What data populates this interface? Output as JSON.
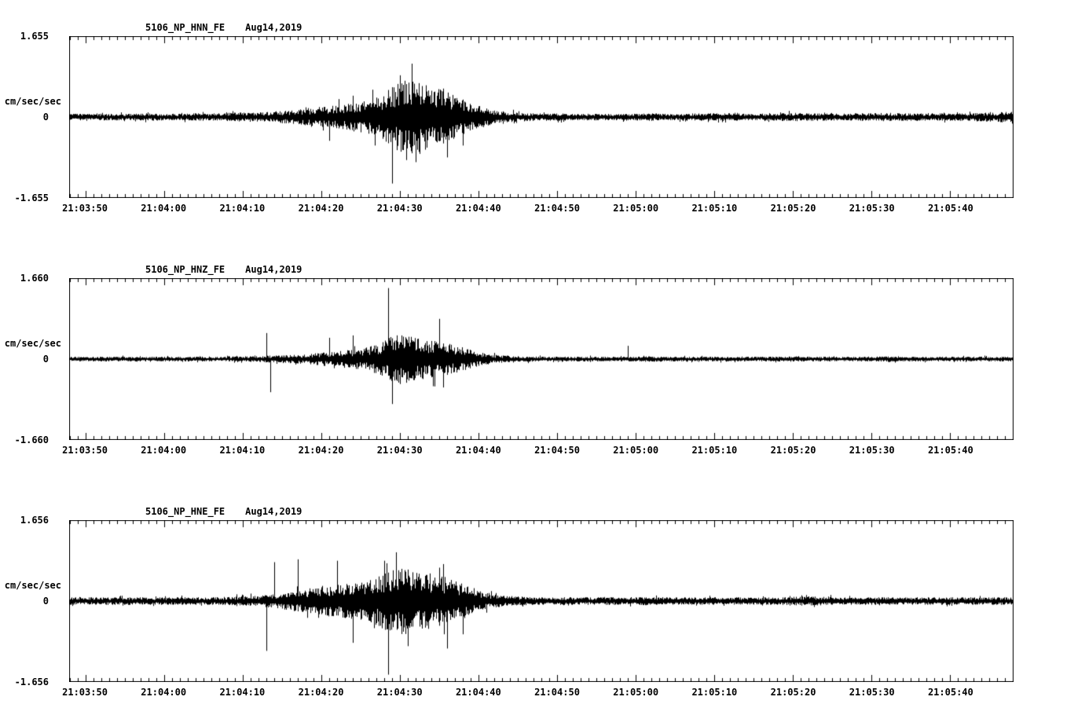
{
  "figure": {
    "background": "#ffffff",
    "trace_color": "#000000"
  },
  "chart_data": [
    {
      "type": "line",
      "subtype": "seismogram",
      "title": "5106_NP_HNN_FE",
      "date_label": "Aug14,2019",
      "ylabel": "cm/sec/sec",
      "ylim": [
        -1.655,
        1.655
      ],
      "ytick_labels": [
        "1.655",
        "0",
        "-1.655"
      ],
      "color": "#000000",
      "x_range_sec": [
        0,
        120
      ],
      "x_major_tick_interval_sec": 10,
      "x_minor_tick_interval_sec": 1,
      "xticks": [
        {
          "sec": 2,
          "label": "21:03:50"
        },
        {
          "sec": 12,
          "label": "21:04:00"
        },
        {
          "sec": 22,
          "label": "21:04:10"
        },
        {
          "sec": 32,
          "label": "21:04:20"
        },
        {
          "sec": 42,
          "label": "21:04:30"
        },
        {
          "sec": 52,
          "label": "21:04:40"
        },
        {
          "sec": 62,
          "label": "21:04:50"
        },
        {
          "sec": 72,
          "label": "21:05:00"
        },
        {
          "sec": 82,
          "label": "21:05:10"
        },
        {
          "sec": 92,
          "label": "21:05:20"
        },
        {
          "sec": 102,
          "label": "21:05:30"
        },
        {
          "sec": 112,
          "label": "21:05:40"
        }
      ],
      "envelope_dt_sec": 2,
      "envelope": [
        0.07,
        0.07,
        0.07,
        0.07,
        0.07,
        0.08,
        0.07,
        0.07,
        0.08,
        0.08,
        0.09,
        0.1,
        0.1,
        0.12,
        0.14,
        0.17,
        0.22,
        0.25,
        0.3,
        0.35,
        0.5,
        0.75,
        0.83,
        0.65,
        0.55,
        0.4,
        0.25,
        0.15,
        0.11,
        0.09,
        0.08,
        0.08,
        0.07,
        0.07,
        0.07,
        0.07,
        0.07,
        0.08,
        0.07,
        0.07,
        0.08,
        0.08,
        0.08,
        0.07,
        0.07,
        0.08,
        0.09,
        0.08,
        0.08,
        0.07,
        0.08,
        0.08,
        0.09,
        0.08,
        0.08,
        0.07,
        0.08,
        0.08,
        0.09,
        0.1,
        0.14
      ],
      "spikes": [
        [
          33,
          -0.5
        ],
        [
          36,
          0.45
        ],
        [
          41,
          -1.4
        ],
        [
          42,
          0.88
        ],
        [
          44,
          -0.95
        ],
        [
          47.5,
          0.6
        ],
        [
          48,
          -0.85
        ],
        [
          50,
          -0.6
        ]
      ]
    },
    {
      "type": "line",
      "subtype": "seismogram",
      "title": "5106_NP_HNZ_FE",
      "date_label": "Aug14,2019",
      "ylabel": "cm/sec/sec",
      "ylim": [
        -1.66,
        1.66
      ],
      "ytick_labels": [
        "1.660",
        "0",
        "-1.660"
      ],
      "color": "#000000",
      "x_range_sec": [
        0,
        120
      ],
      "x_major_tick_interval_sec": 10,
      "x_minor_tick_interval_sec": 1,
      "xticks": [
        {
          "sec": 2,
          "label": "21:03:50"
        },
        {
          "sec": 12,
          "label": "21:04:00"
        },
        {
          "sec": 22,
          "label": "21:04:10"
        },
        {
          "sec": 32,
          "label": "21:04:20"
        },
        {
          "sec": 42,
          "label": "21:04:30"
        },
        {
          "sec": 52,
          "label": "21:04:40"
        },
        {
          "sec": 62,
          "label": "21:04:50"
        },
        {
          "sec": 72,
          "label": "21:05:00"
        },
        {
          "sec": 82,
          "label": "21:05:10"
        },
        {
          "sec": 92,
          "label": "21:05:20"
        },
        {
          "sec": 102,
          "label": "21:05:30"
        },
        {
          "sec": 112,
          "label": "21:05:40"
        }
      ],
      "envelope_dt_sec": 2,
      "envelope": [
        0.05,
        0.05,
        0.05,
        0.05,
        0.05,
        0.05,
        0.05,
        0.05,
        0.05,
        0.05,
        0.05,
        0.06,
        0.06,
        0.08,
        0.09,
        0.1,
        0.14,
        0.17,
        0.2,
        0.25,
        0.4,
        0.55,
        0.45,
        0.4,
        0.35,
        0.25,
        0.15,
        0.09,
        0.07,
        0.06,
        0.05,
        0.05,
        0.05,
        0.05,
        0.05,
        0.05,
        0.05,
        0.06,
        0.05,
        0.05,
        0.05,
        0.05,
        0.05,
        0.05,
        0.05,
        0.05,
        0.06,
        0.05,
        0.05,
        0.05,
        0.05,
        0.05,
        0.06,
        0.05,
        0.05,
        0.05,
        0.05,
        0.05,
        0.05,
        0.05,
        0.05
      ],
      "spikes": [
        [
          25,
          0.55
        ],
        [
          25.5,
          -0.7
        ],
        [
          33,
          0.45
        ],
        [
          36,
          0.5
        ],
        [
          40.5,
          1.5
        ],
        [
          41,
          -0.95
        ],
        [
          47,
          0.85
        ],
        [
          47.5,
          -0.6
        ],
        [
          71,
          0.28
        ]
      ]
    },
    {
      "type": "line",
      "subtype": "seismogram",
      "title": "5106_NP_HNE_FE",
      "date_label": "Aug14,2019",
      "ylabel": "cm/sec/sec",
      "ylim": [
        -1.656,
        1.656
      ],
      "ytick_labels": [
        "1.656",
        "0",
        "-1.656"
      ],
      "color": "#000000",
      "x_range_sec": [
        0,
        120
      ],
      "x_major_tick_interval_sec": 10,
      "x_minor_tick_interval_sec": 1,
      "xticks": [
        {
          "sec": 2,
          "label": "21:03:50"
        },
        {
          "sec": 12,
          "label": "21:04:00"
        },
        {
          "sec": 22,
          "label": "21:04:10"
        },
        {
          "sec": 32,
          "label": "21:04:20"
        },
        {
          "sec": 42,
          "label": "21:04:30"
        },
        {
          "sec": 52,
          "label": "21:04:40"
        },
        {
          "sec": 62,
          "label": "21:04:50"
        },
        {
          "sec": 72,
          "label": "21:05:00"
        },
        {
          "sec": 82,
          "label": "21:05:10"
        },
        {
          "sec": 92,
          "label": "21:05:20"
        },
        {
          "sec": 102,
          "label": "21:05:30"
        },
        {
          "sec": 112,
          "label": "21:05:40"
        }
      ],
      "envelope_dt_sec": 2,
      "envelope": [
        0.08,
        0.08,
        0.08,
        0.08,
        0.08,
        0.08,
        0.08,
        0.08,
        0.08,
        0.08,
        0.09,
        0.1,
        0.11,
        0.15,
        0.2,
        0.25,
        0.32,
        0.35,
        0.38,
        0.42,
        0.6,
        0.72,
        0.68,
        0.58,
        0.5,
        0.38,
        0.24,
        0.14,
        0.11,
        0.09,
        0.08,
        0.08,
        0.08,
        0.08,
        0.08,
        0.08,
        0.08,
        0.09,
        0.08,
        0.08,
        0.08,
        0.08,
        0.08,
        0.08,
        0.08,
        0.08,
        0.09,
        0.1,
        0.09,
        0.08,
        0.08,
        0.08,
        0.08,
        0.08,
        0.08,
        0.08,
        0.08,
        0.08,
        0.08,
        0.08,
        0.08
      ],
      "spikes": [
        [
          25,
          -1.05
        ],
        [
          26,
          0.82
        ],
        [
          29,
          0.88
        ],
        [
          34,
          0.85
        ],
        [
          36,
          -0.88
        ],
        [
          40,
          0.85
        ],
        [
          40.5,
          -1.55
        ],
        [
          43,
          -0.95
        ],
        [
          47.5,
          0.78
        ],
        [
          48,
          -1.0
        ],
        [
          50,
          -0.7
        ]
      ]
    }
  ]
}
